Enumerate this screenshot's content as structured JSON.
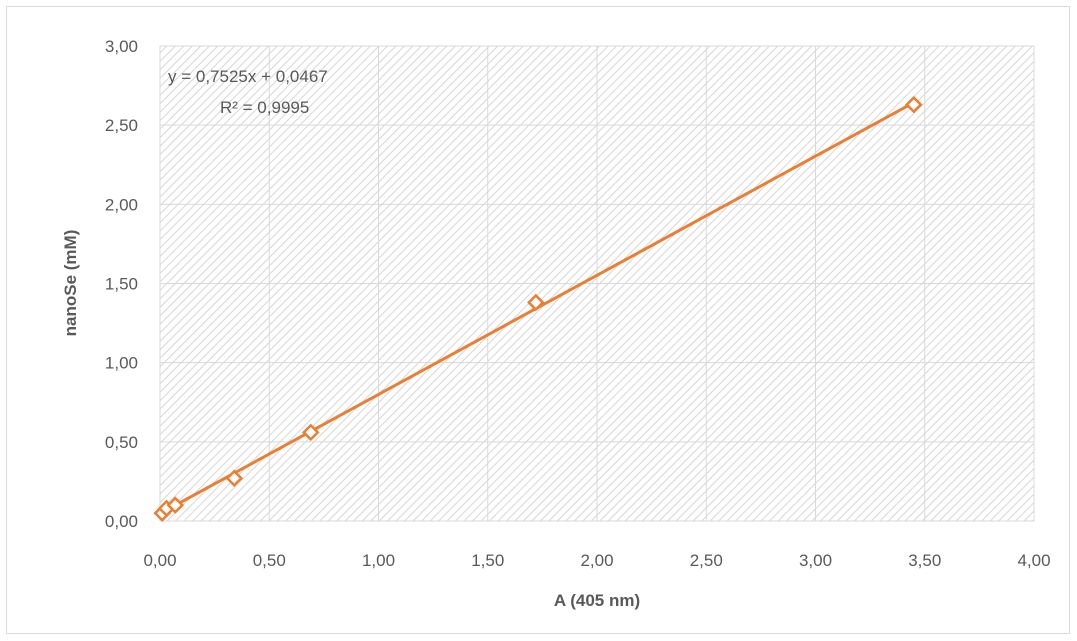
{
  "chart_data": {
    "type": "scatter",
    "xlabel": "A (405 nm)",
    "ylabel": "nanoSe (mM)",
    "xlim": [
      0,
      4
    ],
    "ylim": [
      0,
      3
    ],
    "x_ticks": [
      "0,00",
      "0,50",
      "1,00",
      "1,50",
      "2,00",
      "2,50",
      "3,00",
      "3,50",
      "4,00"
    ],
    "y_ticks": [
      "0,00",
      "0,50",
      "1,00",
      "1,50",
      "2,00",
      "2,50",
      "3,00"
    ],
    "grid": true,
    "plot_background": "hatched",
    "series": [
      {
        "color": "#ed7d31",
        "marker": "diamond-open",
        "x": [
          0.01,
          0.03,
          0.07,
          0.34,
          0.69,
          1.72,
          3.45
        ],
        "y": [
          0.05,
          0.08,
          0.1,
          0.27,
          0.56,
          1.38,
          2.63
        ]
      }
    ],
    "trendline": {
      "type": "linear",
      "slope": 0.7525,
      "intercept": 0.0467,
      "color": "#ed7d31",
      "equation": "y = 0,7525x + 0,0467",
      "r_squared": "R² = 0,9995"
    }
  }
}
